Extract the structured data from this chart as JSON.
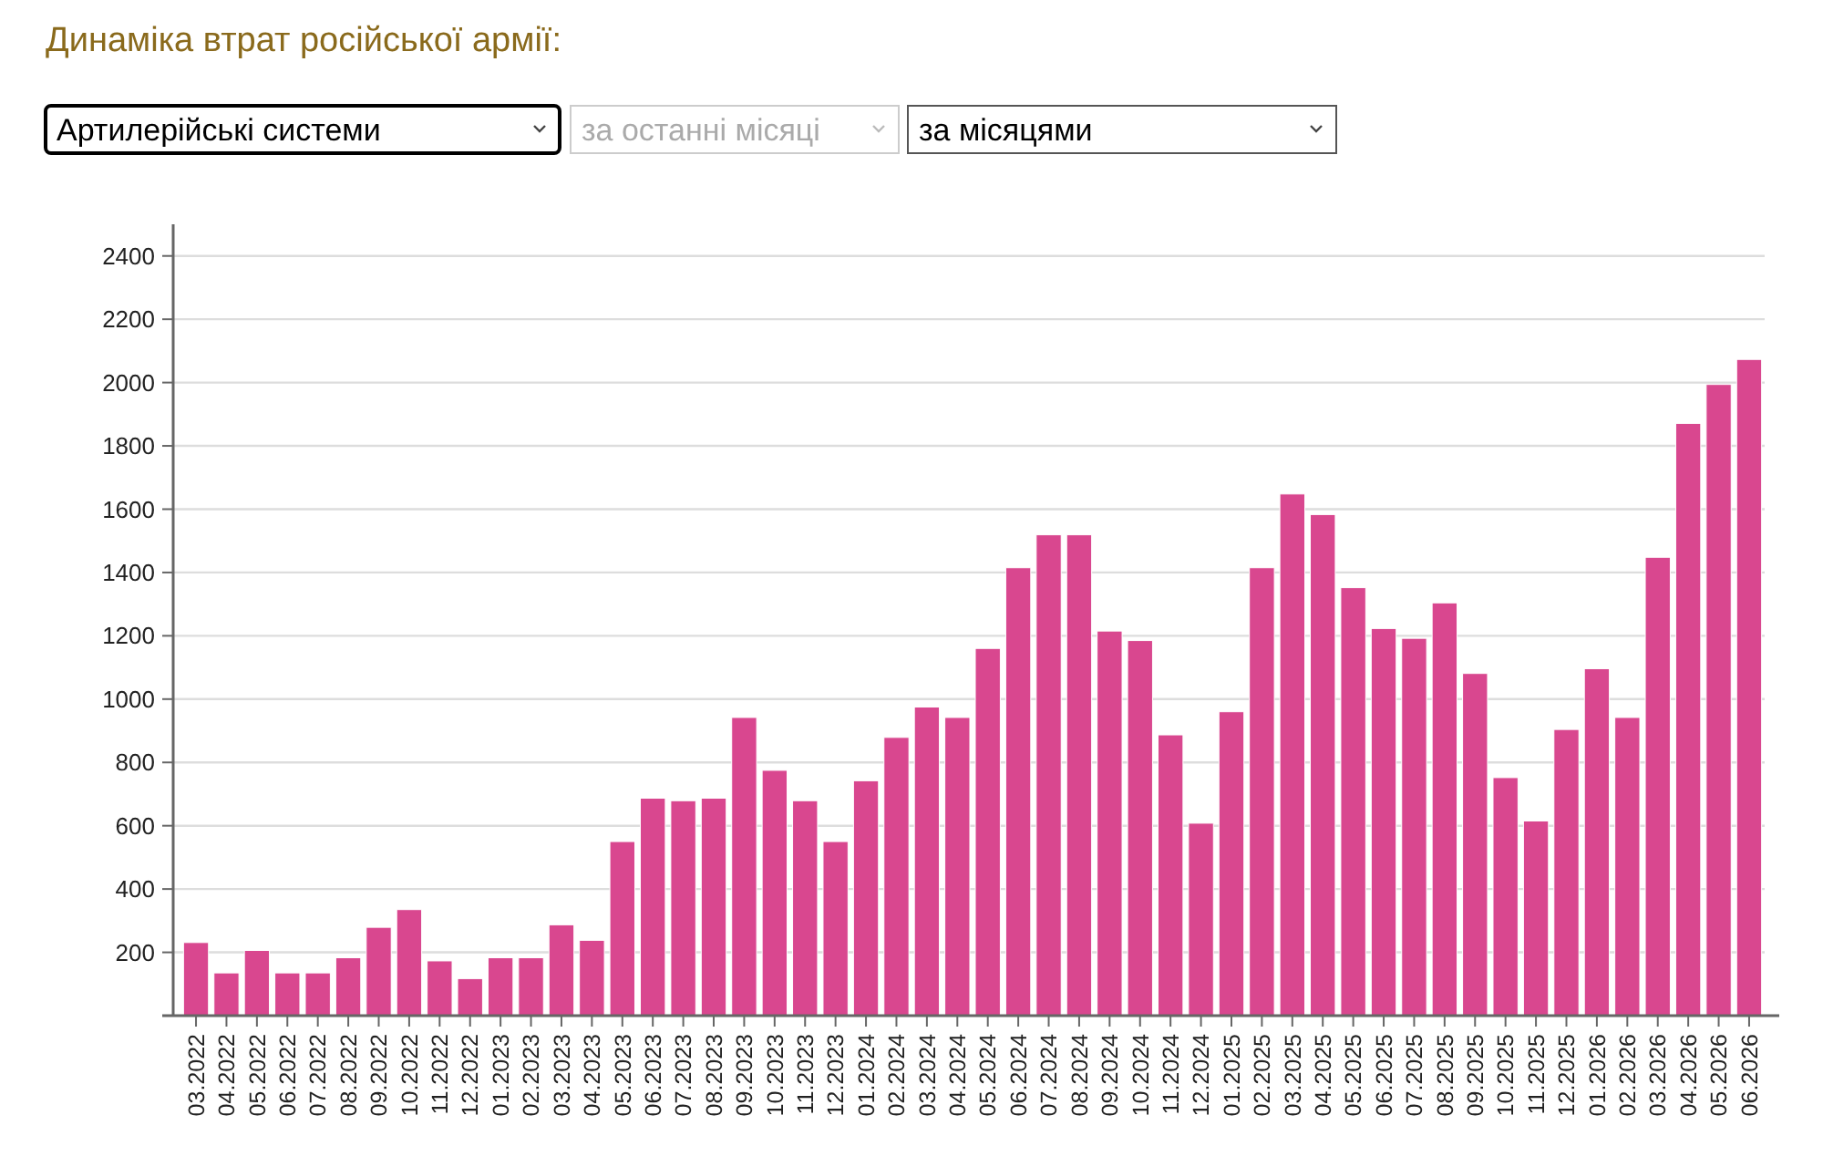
{
  "chart_data": {
    "type": "bar",
    "title": "Динаміка втрат російської армії:",
    "annotations": [
      "Артилерійські системи",
      "за останні місяці",
      "за місяцями"
    ],
    "categories": [
      "03.2022",
      "04.2022",
      "05.2022",
      "06.2022",
      "07.2022",
      "08.2022",
      "09.2022",
      "10.2022",
      "11.2022",
      "12.2022",
      "01.2023",
      "02.2023",
      "03.2023",
      "04.2023",
      "05.2023",
      "06.2023",
      "07.2023",
      "08.2023",
      "09.2023",
      "10.2023",
      "11.2023",
      "12.2023",
      "01.2024",
      "02.2024",
      "03.2024",
      "04.2024",
      "05.2024",
      "06.2024",
      "07.2024",
      "08.2024",
      "09.2024",
      "10.2024",
      "11.2024",
      "12.2024",
      "01.2025",
      "02.2025",
      "03.2025",
      "04.2025",
      "05.2025",
      "06.2025",
      "07.2025",
      "08.2025",
      "09.2025",
      "10.2025",
      "11.2025",
      "12.2025",
      "01.2026",
      "02.2026",
      "03.2026",
      "04.2026",
      "05.2026",
      "06.2026"
    ],
    "values": [
      231,
      135,
      206,
      135,
      135,
      183,
      279,
      335,
      173,
      117,
      183,
      183,
      287,
      238,
      550,
      687,
      679,
      687,
      942,
      775,
      679,
      550,
      742,
      879,
      975,
      942,
      1160,
      1415,
      1519,
      1519,
      1215,
      1185,
      887,
      608,
      960,
      1415,
      1648,
      1583,
      1352,
      1223,
      1192,
      1304,
      1081,
      752,
      615,
      904,
      1096,
      942,
      1448,
      1871,
      1994,
      2073
    ],
    "color": "#d9478f",
    "ylim": [
      0,
      2500
    ],
    "yticks": [
      200,
      400,
      600,
      800,
      1000,
      1200,
      1400,
      1600,
      1800,
      2000,
      2200,
      2400
    ],
    "grid": "y"
  }
}
